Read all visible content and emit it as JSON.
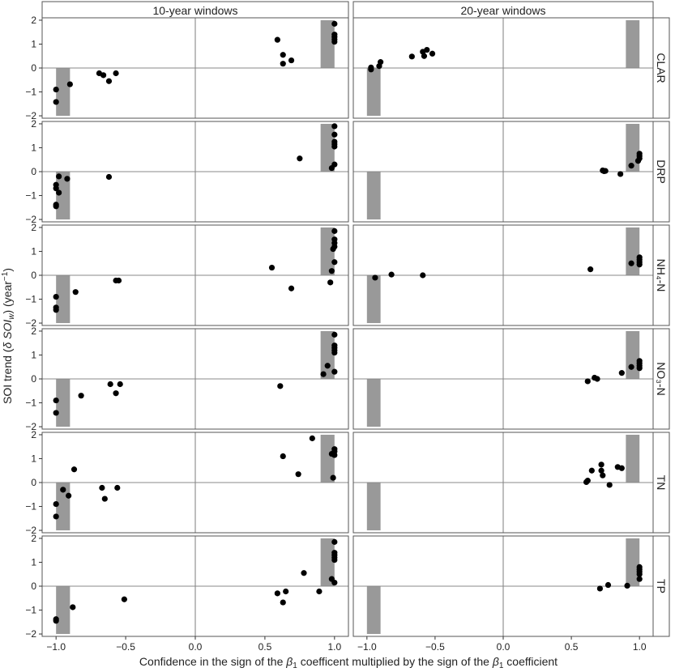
{
  "chart_data": {
    "type": "scatter",
    "layout": "faceted grid (rows = variables, columns = window lengths)",
    "columns": [
      "10-year windows",
      "20-year windows"
    ],
    "rows": [
      "CLAR",
      "DRP",
      "NH₄-N",
      "NO₃-N",
      "TN",
      "TP"
    ],
    "xlabel_parts": [
      "Confidence in the sign of the ",
      "β",
      "1",
      " coefficent multiplied by the sign of the ",
      "β",
      "1",
      " coefficient"
    ],
    "ylabel_parts": [
      "SOI trend (",
      "δ SOI",
      "w",
      ") (year",
      "−1",
      ")"
    ],
    "xlim": [
      -1.1,
      1.1
    ],
    "ylim": [
      -2.1,
      2.1
    ],
    "xticks": [
      -1.0,
      -0.5,
      0.0,
      0.5,
      1.0
    ],
    "xtick_labels": [
      "−1.0",
      "−0.5",
      "0.0",
      "0.5",
      "1.0"
    ],
    "yticks": [
      -2,
      -1,
      0,
      1,
      2
    ],
    "ytick_labels": [
      "−2",
      "−1",
      "0",
      "1",
      "2"
    ],
    "reference_lines": {
      "x": 0,
      "y": 0
    },
    "shaded_regions": [
      {
        "x": [
          -1.0,
          -0.9
        ],
        "y": [
          -2.0,
          0.0
        ]
      },
      {
        "x": [
          0.9,
          1.0
        ],
        "y": [
          0.0,
          2.0
        ]
      }
    ],
    "colors": {
      "points": "#000000",
      "shade": "#999999",
      "reference": "#888888",
      "panel_border": "#555555"
    },
    "panels": [
      {
        "row": "CLAR",
        "col": "10-year windows",
        "points": [
          [
            -1.0,
            -0.9
          ],
          [
            -1.0,
            -1.42
          ],
          [
            -0.9,
            -0.68
          ],
          [
            -0.69,
            -0.22
          ],
          [
            -0.66,
            -0.3
          ],
          [
            -0.62,
            -0.55
          ],
          [
            -0.57,
            -0.22
          ],
          [
            0.59,
            1.18
          ],
          [
            0.63,
            0.55
          ],
          [
            0.63,
            0.18
          ],
          [
            0.69,
            0.32
          ],
          [
            1.0,
            1.85
          ],
          [
            1.0,
            1.4
          ],
          [
            1.0,
            1.3
          ],
          [
            1.0,
            1.2
          ],
          [
            1.0,
            1.1
          ]
        ]
      },
      {
        "row": "CLAR",
        "col": "20-year windows",
        "points": [
          [
            -0.97,
            0.02
          ],
          [
            -0.97,
            -0.06
          ],
          [
            -0.91,
            0.08
          ],
          [
            -0.9,
            0.25
          ],
          [
            -0.67,
            0.48
          ],
          [
            -0.59,
            0.68
          ],
          [
            -0.58,
            0.5
          ],
          [
            -0.56,
            0.76
          ],
          [
            -0.52,
            0.6
          ]
        ]
      },
      {
        "row": "DRP",
        "col": "10-year windows",
        "points": [
          [
            -1.0,
            -0.55
          ],
          [
            -1.0,
            -0.7
          ],
          [
            -0.98,
            -0.2
          ],
          [
            -1.0,
            -1.38
          ],
          [
            -1.0,
            -1.45
          ],
          [
            -0.98,
            -0.88
          ],
          [
            -0.92,
            -0.3
          ],
          [
            -0.62,
            -0.22
          ],
          [
            0.75,
            0.55
          ],
          [
            1.0,
            1.9
          ],
          [
            1.0,
            1.55
          ],
          [
            1.0,
            1.25
          ],
          [
            1.0,
            1.15
          ],
          [
            1.0,
            1.05
          ],
          [
            1.0,
            0.3
          ],
          [
            0.98,
            0.15
          ]
        ]
      },
      {
        "row": "DRP",
        "col": "20-year windows",
        "points": [
          [
            0.73,
            0.05
          ],
          [
            0.74,
            0.02
          ],
          [
            0.75,
            0.03
          ],
          [
            0.86,
            -0.1
          ],
          [
            0.94,
            0.25
          ],
          [
            1.0,
            0.75
          ],
          [
            1.0,
            0.65
          ],
          [
            1.0,
            0.55
          ],
          [
            0.99,
            0.45
          ]
        ]
      },
      {
        "row": "NH₄-N",
        "col": "10-year windows",
        "points": [
          [
            -1.0,
            -0.9
          ],
          [
            -1.0,
            -1.35
          ],
          [
            -1.0,
            -1.45
          ],
          [
            -0.86,
            -0.7
          ],
          [
            -0.57,
            -0.22
          ],
          [
            -0.55,
            -0.22
          ],
          [
            0.55,
            0.32
          ],
          [
            0.69,
            -0.55
          ],
          [
            0.97,
            -0.3
          ],
          [
            0.98,
            0.18
          ],
          [
            1.0,
            1.85
          ],
          [
            1.0,
            1.5
          ],
          [
            1.0,
            1.35
          ],
          [
            1.0,
            1.2
          ],
          [
            0.99,
            1.1
          ],
          [
            1.0,
            0.55
          ]
        ]
      },
      {
        "row": "NH₄-N",
        "col": "20-year windows",
        "points": [
          [
            -0.94,
            -0.1
          ],
          [
            -0.82,
            0.03
          ],
          [
            -0.59,
            0.0
          ],
          [
            0.64,
            0.25
          ],
          [
            0.94,
            0.5
          ],
          [
            1.0,
            0.75
          ],
          [
            1.0,
            0.65
          ],
          [
            1.0,
            0.55
          ],
          [
            1.0,
            0.45
          ]
        ]
      },
      {
        "row": "NO₃-N",
        "col": "10-year windows",
        "points": [
          [
            -1.0,
            -0.9
          ],
          [
            -1.0,
            -1.42
          ],
          [
            -0.82,
            -0.7
          ],
          [
            -0.61,
            -0.22
          ],
          [
            -0.57,
            -0.6
          ],
          [
            -0.54,
            -0.22
          ],
          [
            0.61,
            -0.3
          ],
          [
            0.92,
            0.2
          ],
          [
            0.95,
            0.55
          ],
          [
            1.0,
            1.85
          ],
          [
            1.0,
            1.4
          ],
          [
            1.0,
            1.3
          ],
          [
            1.0,
            1.2
          ],
          [
            1.0,
            1.1
          ],
          [
            1.0,
            0.3
          ]
        ]
      },
      {
        "row": "NO₃-N",
        "col": "20-year windows",
        "points": [
          [
            0.62,
            -0.1
          ],
          [
            0.67,
            0.05
          ],
          [
            0.69,
            0.0
          ],
          [
            0.87,
            0.25
          ],
          [
            0.94,
            0.5
          ],
          [
            1.0,
            0.75
          ],
          [
            1.0,
            0.65
          ],
          [
            1.0,
            0.55
          ],
          [
            1.0,
            0.45
          ]
        ]
      },
      {
        "row": "TN",
        "col": "10-year windows",
        "points": [
          [
            -1.0,
            -0.9
          ],
          [
            -1.0,
            -1.42
          ],
          [
            -0.95,
            -0.3
          ],
          [
            -0.91,
            -0.55
          ],
          [
            -0.87,
            0.55
          ],
          [
            -0.67,
            -0.22
          ],
          [
            -0.65,
            -0.68
          ],
          [
            -0.56,
            -0.22
          ],
          [
            0.63,
            1.1
          ],
          [
            0.74,
            0.35
          ],
          [
            0.84,
            1.85
          ],
          [
            0.98,
            1.2
          ],
          [
            1.0,
            1.4
          ],
          [
            1.0,
            1.3
          ],
          [
            1.0,
            1.15
          ],
          [
            0.99,
            0.2
          ]
        ]
      },
      {
        "row": "TN",
        "col": "20-year windows",
        "points": [
          [
            0.61,
            0.02
          ],
          [
            0.62,
            0.08
          ],
          [
            0.65,
            0.5
          ],
          [
            0.72,
            0.5
          ],
          [
            0.72,
            0.75
          ],
          [
            0.73,
            0.3
          ],
          [
            0.78,
            -0.1
          ],
          [
            0.84,
            0.65
          ],
          [
            0.87,
            0.6
          ]
        ]
      },
      {
        "row": "TP",
        "col": "10-year windows",
        "points": [
          [
            -1.0,
            -1.38
          ],
          [
            -1.0,
            -1.45
          ],
          [
            -0.88,
            -0.88
          ],
          [
            -0.51,
            -0.55
          ],
          [
            0.59,
            -0.3
          ],
          [
            0.63,
            -0.68
          ],
          [
            0.65,
            -0.22
          ],
          [
            0.78,
            0.55
          ],
          [
            0.89,
            -0.22
          ],
          [
            0.98,
            0.3
          ],
          [
            1.0,
            1.85
          ],
          [
            1.0,
            1.4
          ],
          [
            1.0,
            1.3
          ],
          [
            1.0,
            1.2
          ],
          [
            1.0,
            1.1
          ],
          [
            1.0,
            0.15
          ]
        ]
      },
      {
        "row": "TP",
        "col": "20-year windows",
        "points": [
          [
            0.71,
            -0.1
          ],
          [
            0.77,
            0.05
          ],
          [
            0.91,
            0.02
          ],
          [
            1.0,
            0.8
          ],
          [
            1.0,
            0.7
          ],
          [
            1.0,
            0.6
          ],
          [
            1.0,
            0.5
          ],
          [
            1.0,
            0.3
          ]
        ]
      }
    ]
  }
}
